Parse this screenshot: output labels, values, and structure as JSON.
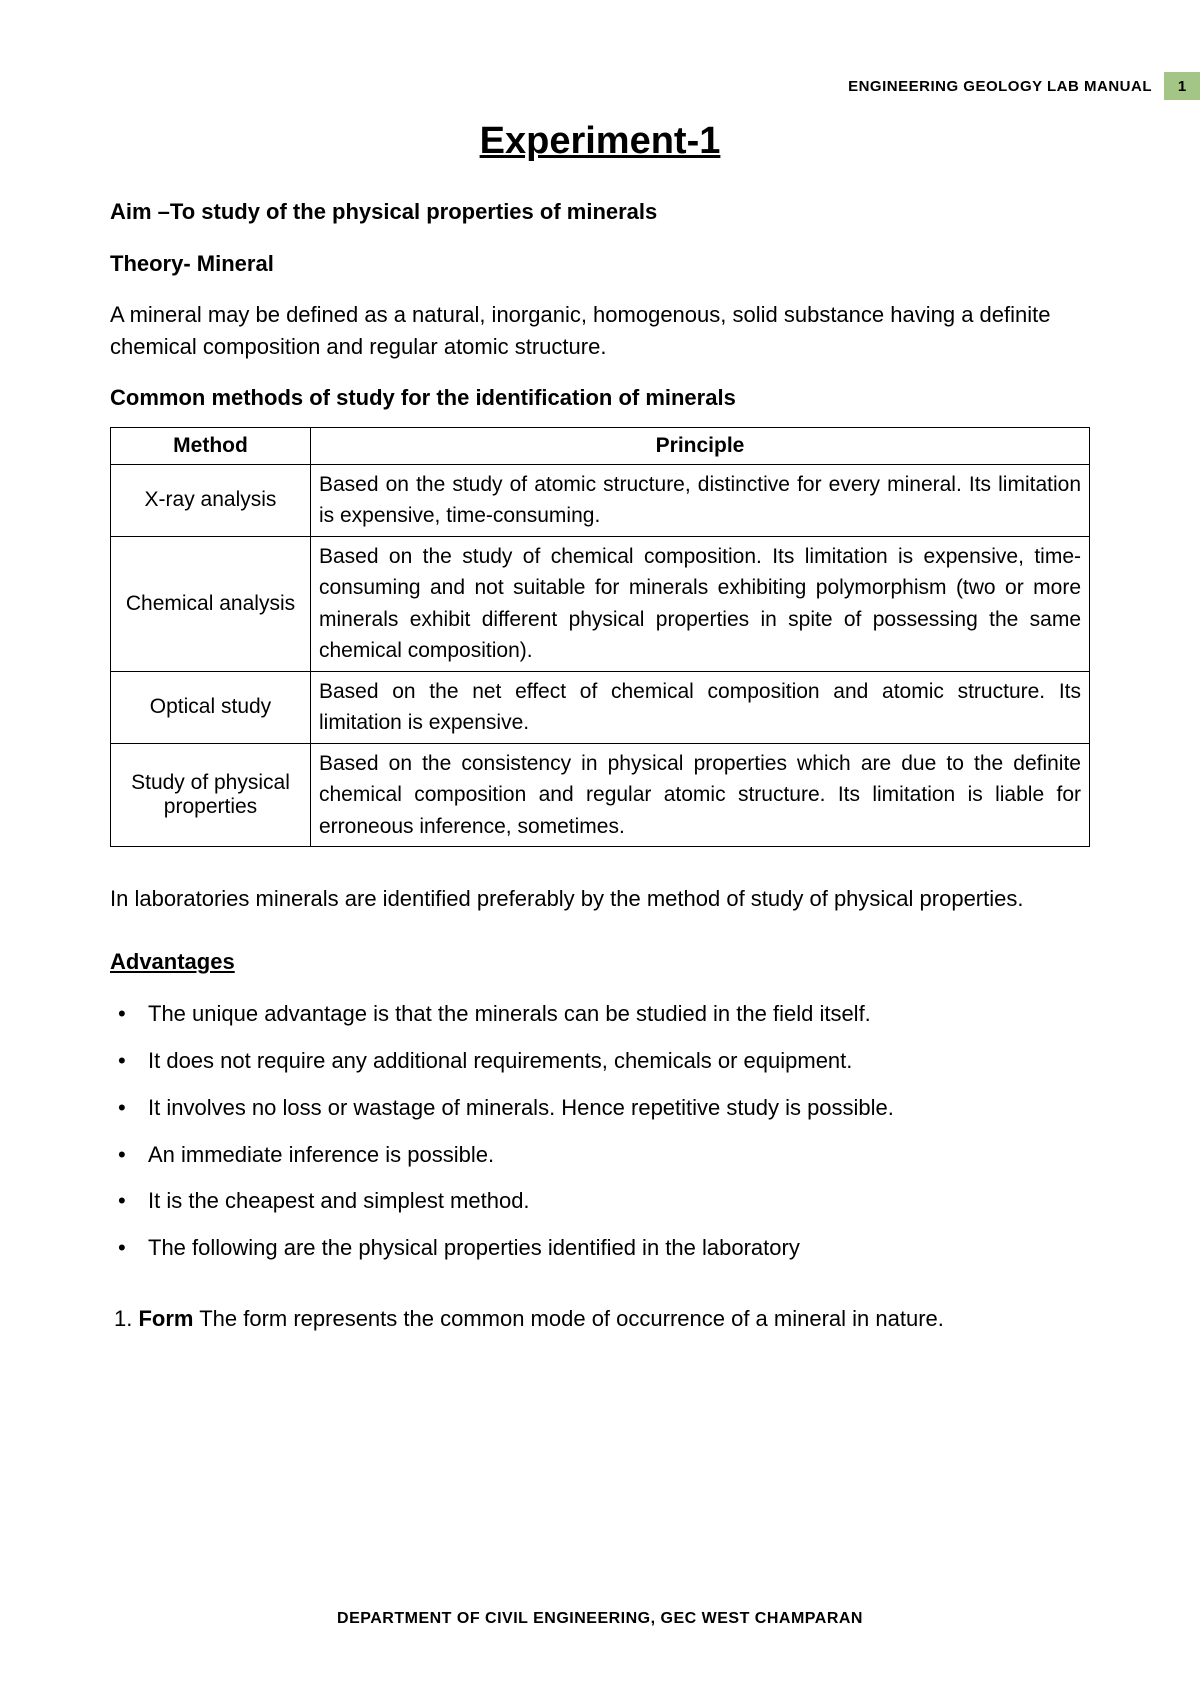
{
  "header": {
    "doc_title": "ENGINEERING GEOLOGY LAB MANUAL",
    "page_number": "1",
    "badge_bg": "#a3c585"
  },
  "title": "Experiment-1",
  "aim": "Aim –To study of the physical properties of minerals",
  "theory_heading": "Theory- Mineral",
  "theory_para": "A mineral may be defined as a natural, inorganic, homogenous, solid substance having a definite chemical composition and regular atomic structure.",
  "methods_heading": "Common methods of study for the identification of minerals",
  "table": {
    "columns": [
      "Method",
      "Principle"
    ],
    "rows": [
      {
        "method": "X-ray analysis",
        "principle": "Based on the study of atomic structure, distinctive for every mineral. Its limitation is expensive, time-consuming."
      },
      {
        "method": "Chemical analysis",
        "principle": "Based on the study of chemical composition. Its limitation is expensive, time-consuming and not suitable for minerals exhibiting polymorphism (two or more minerals exhibit different physical properties in spite of possessing the same chemical composition)."
      },
      {
        "method": "Optical study",
        "principle": "Based on the net effect of chemical composition and atomic structure. Its limitation is expensive."
      },
      {
        "method": "Study of physical properties",
        "principle": "Based on the consistency in physical properties which are due to the definite chemical composition and regular atomic structure. Its limitation is liable for erroneous inference, sometimes."
      }
    ]
  },
  "lab_para": "In laboratories minerals are identified preferably by the method of study of physical properties.",
  "advantages_heading": "Advantages",
  "advantages": [
    "The unique advantage is that the minerals can be studied in the field itself.",
    "It does not require any additional requirements, chemicals or equipment.",
    "It involves no loss or wastage of minerals. Hence repetitive study is possible.",
    "An immediate inference is possible.",
    "It is the cheapest and simplest method.",
    "The following are the physical properties identified in the laboratory"
  ],
  "numbered_item": {
    "num": "1.",
    "label": "Form",
    "text": " The form represents the common mode of occurrence of a mineral in nature."
  },
  "footer": "DEPARTMENT OF CIVIL ENGINEERING, GEC WEST CHAMPARAN"
}
